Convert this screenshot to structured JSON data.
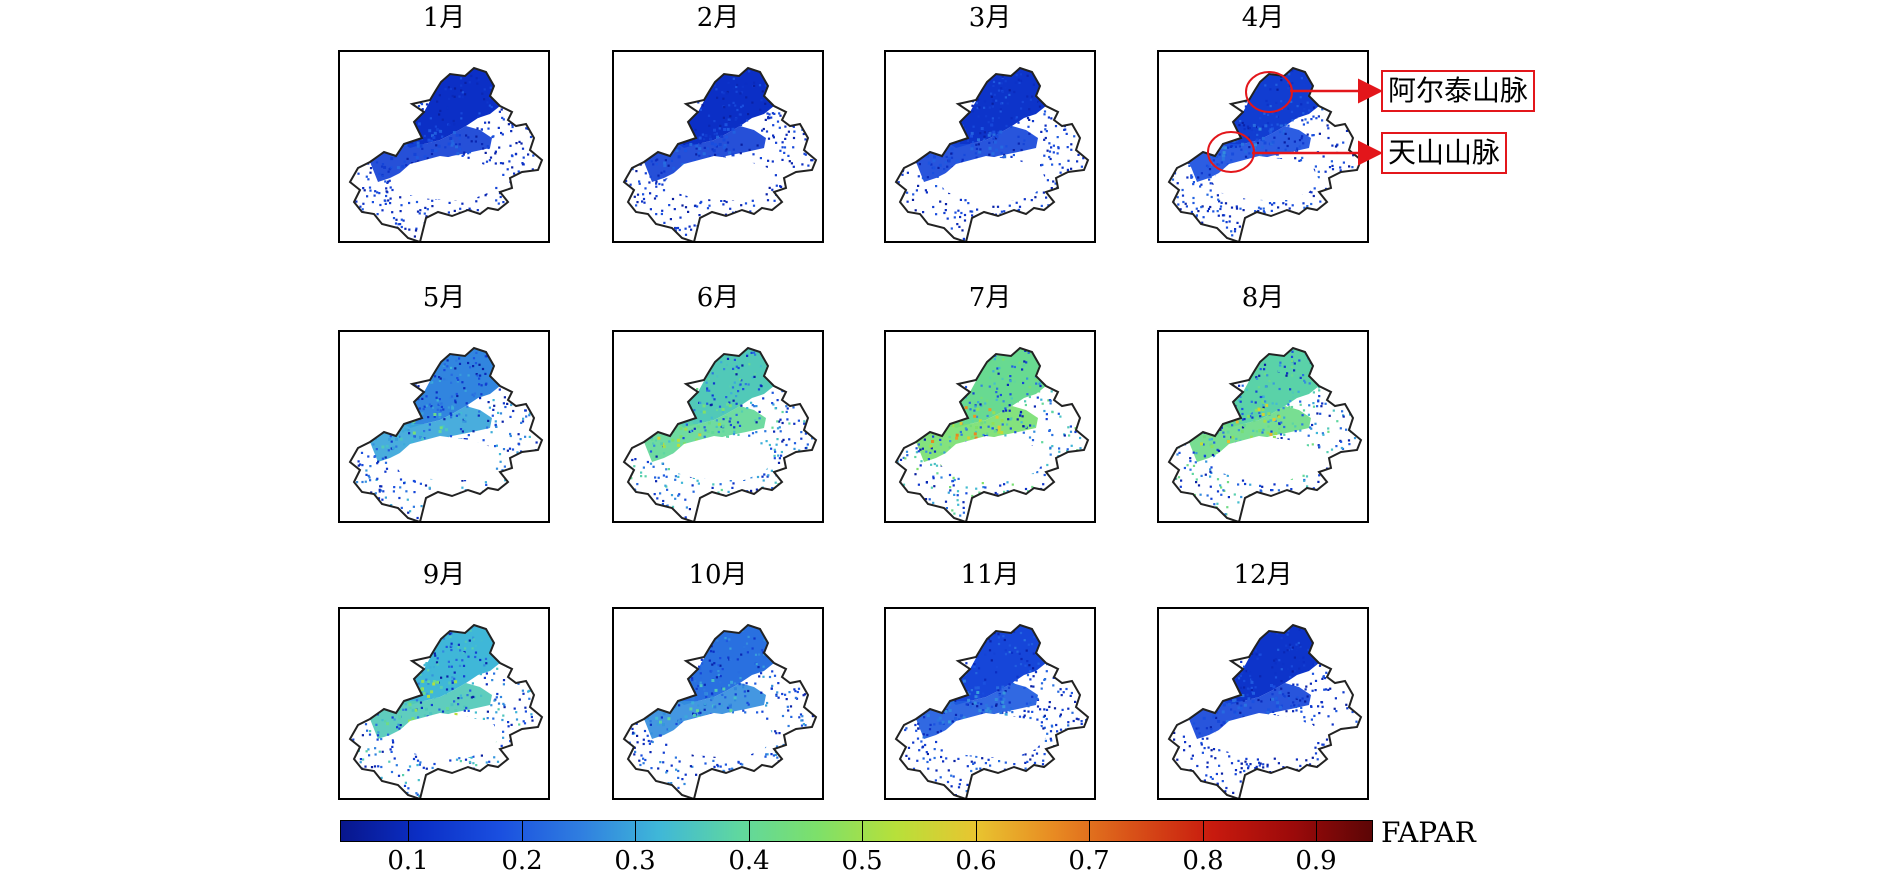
{
  "panels": [
    {
      "title": "1月",
      "level": 0.15
    },
    {
      "title": "2月",
      "level": 0.15
    },
    {
      "title": "3月",
      "level": 0.16
    },
    {
      "title": "4月",
      "level": 0.18
    },
    {
      "title": "5月",
      "level": 0.3
    },
    {
      "title": "6月",
      "level": 0.4
    },
    {
      "title": "7月",
      "level": 0.45
    },
    {
      "title": "8月",
      "level": 0.42
    },
    {
      "title": "9月",
      "level": 0.36
    },
    {
      "title": "10月",
      "level": 0.27
    },
    {
      "title": "11月",
      "level": 0.2
    },
    {
      "title": "12月",
      "level": 0.16
    }
  ],
  "callouts": [
    {
      "label": "阿尔泰山脉"
    },
    {
      "label": "天山山脉"
    }
  ],
  "colorbar": {
    "title": "FAPAR",
    "ticks": [
      "0.1",
      "0.2",
      "0.3",
      "0.4",
      "0.5",
      "0.6",
      "0.7",
      "0.8",
      "0.9"
    ],
    "min": 0.04,
    "max": 0.95,
    "colors": [
      "#08168c",
      "#0b2fc6",
      "#1a4fe0",
      "#2f7de0",
      "#3fb7d8",
      "#5fd7a0",
      "#7de06a",
      "#b7e03a",
      "#e8c530",
      "#e88a22",
      "#d85018",
      "#c81a0e",
      "#9c0a0a",
      "#5c0606"
    ]
  }
}
